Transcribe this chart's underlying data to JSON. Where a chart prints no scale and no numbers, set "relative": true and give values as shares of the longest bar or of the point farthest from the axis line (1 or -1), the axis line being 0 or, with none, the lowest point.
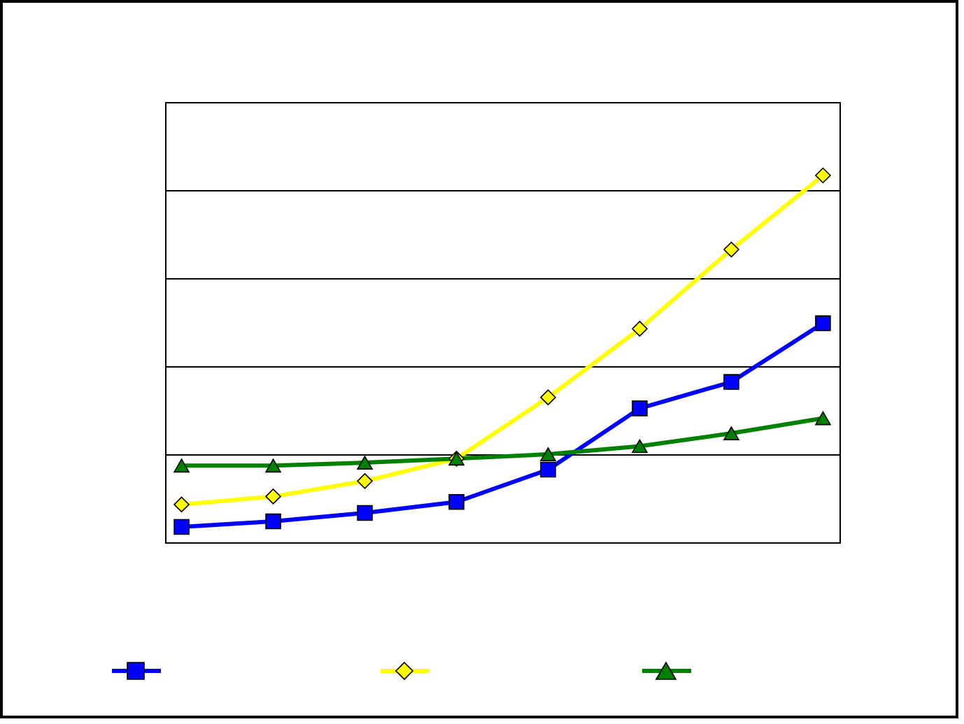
{
  "chart_data": {
    "type": "line",
    "relative": true,
    "categories": [
      null,
      null,
      null,
      null,
      null,
      null,
      null,
      null
    ],
    "series": [
      {
        "color": "#0000ff",
        "marker": "square",
        "values": [
          0.042,
          0.057,
          0.08,
          0.11,
          0.198,
          0.365,
          0.437,
          0.597
        ]
      },
      {
        "color": "#ffff00",
        "marker": "diamond",
        "values": [
          0.103,
          0.125,
          0.167,
          0.228,
          0.395,
          0.582,
          0.798,
          1
        ]
      },
      {
        "color": "#008000",
        "marker": "triangle",
        "values": [
          0.209,
          0.209,
          0.217,
          0.228,
          0.24,
          0.262,
          0.297,
          0.338
        ]
      }
    ],
    "grid": "y",
    "line_style": "solid"
  }
}
